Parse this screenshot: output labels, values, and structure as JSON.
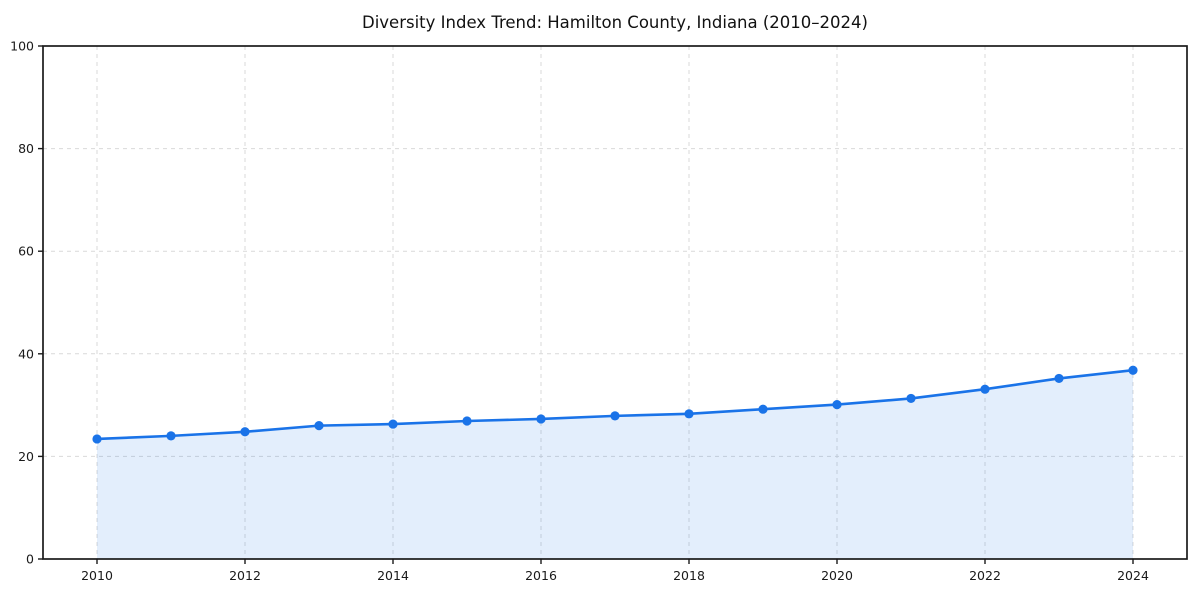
{
  "page": {
    "title": "Diversity Index Trend: Hamilton County, Indiana (2010–2024)"
  },
  "chart_data": {
    "type": "line",
    "title": "Diversity Index Trend: Hamilton County, Indiana (2010–2024)",
    "x": [
      2010,
      2011,
      2012,
      2013,
      2014,
      2015,
      2016,
      2017,
      2018,
      2019,
      2020,
      2021,
      2022,
      2023,
      2024
    ],
    "series": [
      {
        "name": "Diversity Index",
        "values": [
          23.4,
          24.0,
          24.8,
          26.0,
          26.3,
          26.9,
          27.3,
          27.9,
          28.3,
          29.2,
          30.1,
          31.3,
          33.1,
          35.2,
          36.8
        ]
      }
    ],
    "xticks": [
      "2010",
      "2012",
      "2014",
      "2016",
      "2018",
      "2020",
      "2022",
      "2024"
    ],
    "yticks": [
      "0",
      "20",
      "40",
      "60",
      "80",
      "100"
    ],
    "xlabel": "",
    "ylabel": "",
    "ylim": [
      0,
      100
    ],
    "xlim_years": [
      2010,
      2024
    ],
    "grid": "both-dashed",
    "legend": "none",
    "line_color": "#1a73e8",
    "marker_color": "#1a73e8",
    "fill_color": "rgba(26,115,232,0.12)",
    "grid_color": "#d9d9d9",
    "axis_color": "#1a1a1a",
    "tick_label_color": "#1a1a1a"
  }
}
